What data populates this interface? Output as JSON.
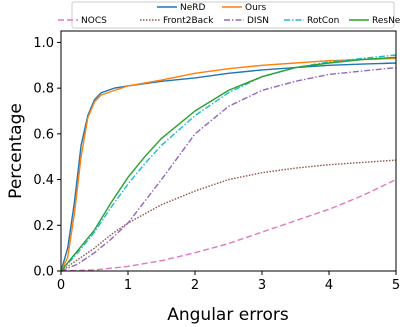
{
  "chart_data": {
    "type": "line",
    "xlabel": "Angular errors",
    "ylabel": "Percentage",
    "xlim": [
      0,
      5
    ],
    "ylim": [
      0,
      1.05
    ],
    "xticks": [
      "0",
      "1",
      "2",
      "3",
      "4",
      "5"
    ],
    "yticks": [
      "0.0",
      "0.2",
      "0.4",
      "0.6",
      "0.8",
      "1.0"
    ],
    "grid": false,
    "legend_position": "top (above plot)",
    "series": [
      {
        "name": "NeRD",
        "color": "#1f77b4",
        "dash": "solid",
        "x": [
          0,
          0.1,
          0.2,
          0.3,
          0.4,
          0.5,
          0.6,
          0.8,
          1.0,
          1.5,
          2.0,
          2.5,
          3.0,
          3.5,
          4.0,
          4.5,
          5.0
        ],
        "y": [
          0,
          0.1,
          0.3,
          0.55,
          0.68,
          0.75,
          0.78,
          0.8,
          0.81,
          0.83,
          0.845,
          0.865,
          0.88,
          0.89,
          0.9,
          0.905,
          0.91
        ]
      },
      {
        "name": "Ours",
        "color": "#ff7f0e",
        "dash": "solid",
        "x": [
          0,
          0.1,
          0.2,
          0.3,
          0.4,
          0.5,
          0.6,
          0.8,
          1.0,
          1.5,
          2.0,
          2.5,
          3.0,
          3.5,
          4.0,
          4.5,
          5.0
        ],
        "y": [
          0,
          0.06,
          0.25,
          0.5,
          0.67,
          0.74,
          0.77,
          0.79,
          0.81,
          0.835,
          0.865,
          0.885,
          0.9,
          0.91,
          0.92,
          0.925,
          0.93
        ]
      },
      {
        "name": "NOCS",
        "color": "#e377c2",
        "dash": "long",
        "x": [
          0,
          0.5,
          1.0,
          1.5,
          2.0,
          2.5,
          3.0,
          3.5,
          4.0,
          4.5,
          5.0
        ],
        "y": [
          0,
          0.005,
          0.02,
          0.045,
          0.08,
          0.12,
          0.17,
          0.22,
          0.27,
          0.33,
          0.4
        ]
      },
      {
        "name": "Front2Back",
        "color": "#8c564b",
        "dash": "dotted",
        "x": [
          0,
          0.25,
          0.5,
          0.75,
          1.0,
          1.5,
          2.0,
          2.5,
          3.0,
          3.5,
          4.0,
          4.5,
          5.0
        ],
        "y": [
          0,
          0.05,
          0.1,
          0.16,
          0.21,
          0.29,
          0.35,
          0.4,
          0.43,
          0.45,
          0.465,
          0.475,
          0.485
        ]
      },
      {
        "name": "DISN",
        "color": "#9467bd",
        "dash": "dashdot",
        "x": [
          0,
          0.25,
          0.5,
          0.75,
          1.0,
          1.5,
          2.0,
          2.5,
          3.0,
          3.5,
          4.0,
          4.5,
          5.0
        ],
        "y": [
          0,
          0.03,
          0.08,
          0.14,
          0.21,
          0.4,
          0.6,
          0.72,
          0.79,
          0.83,
          0.86,
          0.875,
          0.89
        ]
      },
      {
        "name": "RotCon",
        "color": "#17becf",
        "dash": "dashdot",
        "x": [
          0,
          0.25,
          0.5,
          0.75,
          1.0,
          1.25,
          1.5,
          2.0,
          2.5,
          3.0,
          3.5,
          4.0,
          4.5,
          5.0
        ],
        "y": [
          0,
          0.08,
          0.17,
          0.28,
          0.38,
          0.47,
          0.55,
          0.68,
          0.78,
          0.85,
          0.89,
          0.915,
          0.93,
          0.945
        ]
      },
      {
        "name": "ResNet",
        "color": "#2ca02c",
        "dash": "solid",
        "x": [
          0,
          0.25,
          0.5,
          0.75,
          1.0,
          1.25,
          1.5,
          2.0,
          2.5,
          3.0,
          3.5,
          4.0,
          4.5,
          5.0
        ],
        "y": [
          0,
          0.09,
          0.18,
          0.3,
          0.41,
          0.5,
          0.58,
          0.7,
          0.79,
          0.85,
          0.89,
          0.91,
          0.925,
          0.935
        ]
      }
    ]
  }
}
